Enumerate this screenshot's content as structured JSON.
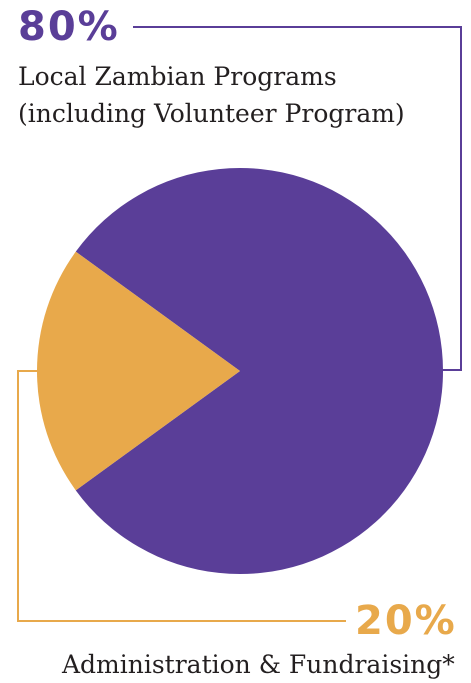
{
  "colors": {
    "main": "#5a3e98",
    "minor": "#e8a94b",
    "text": "#231f20"
  },
  "labels": {
    "main_percent": "80%",
    "main_line1": "Local Zambian Programs",
    "main_line2": "(including Volunteer Program)",
    "minor_percent": "20%",
    "minor_label": "Administration & Fundraising*"
  },
  "chart_data": {
    "type": "pie",
    "slices": [
      {
        "label": "Local Zambian Programs (including Volunteer Program)",
        "value": 80,
        "color": "#5a3e98"
      },
      {
        "label": "Administration & Fundraising*",
        "value": 20,
        "color": "#e8a94b"
      }
    ],
    "start_angle_deg": -144,
    "direction": "clockwise",
    "legend": "callouts"
  }
}
